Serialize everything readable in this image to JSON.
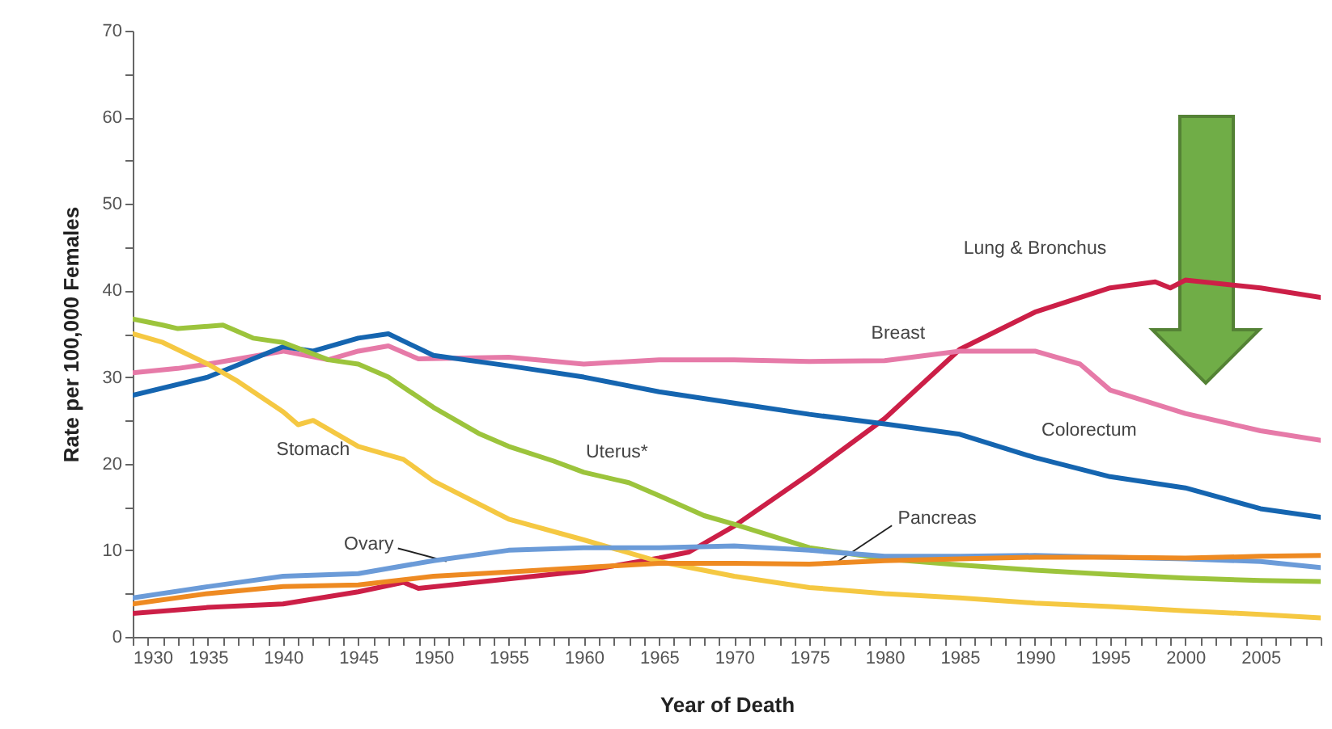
{
  "chart_data": {
    "type": "line",
    "xlabel": "Year of Death",
    "ylabel": "Rate per 100,000 Females",
    "xlim": [
      1930,
      2009
    ],
    "ylim": [
      0,
      70
    ],
    "xticks": [
      1930,
      {
        "value": 1931,
        "label": null
      },
      {
        "value": 1932,
        "label": null
      },
      {
        "value": 1933,
        "label": null
      },
      {
        "value": 1934,
        "label": null
      },
      1935,
      {
        "value": 1936,
        "label": null
      },
      {
        "value": 1937,
        "label": null
      },
      {
        "value": 1938,
        "label": null
      },
      {
        "value": 1939,
        "label": null
      },
      1940,
      {
        "value": 1941,
        "label": null
      },
      {
        "value": 1942,
        "label": null
      },
      {
        "value": 1943,
        "label": null
      },
      {
        "value": 1944,
        "label": null
      },
      1945,
      {
        "value": 1946,
        "label": null
      },
      {
        "value": 1947,
        "label": null
      },
      {
        "value": 1948,
        "label": null
      },
      {
        "value": 1949,
        "label": null
      },
      1950,
      {
        "value": 1951,
        "label": null
      },
      {
        "value": 1952,
        "label": null
      },
      {
        "value": 1953,
        "label": null
      },
      {
        "value": 1954,
        "label": null
      },
      1955,
      {
        "value": 1956,
        "label": null
      },
      {
        "value": 1957,
        "label": null
      },
      {
        "value": 1958,
        "label": null
      },
      {
        "value": 1959,
        "label": null
      },
      1960,
      {
        "value": 1961,
        "label": null
      },
      {
        "value": 1962,
        "label": null
      },
      {
        "value": 1963,
        "label": null
      },
      {
        "value": 1964,
        "label": null
      },
      1965,
      {
        "value": 1966,
        "label": null
      },
      {
        "value": 1967,
        "label": null
      },
      {
        "value": 1968,
        "label": null
      },
      {
        "value": 1969,
        "label": null
      },
      1970,
      {
        "value": 1971,
        "label": null
      },
      {
        "value": 1972,
        "label": null
      },
      {
        "value": 1973,
        "label": null
      },
      {
        "value": 1974,
        "label": null
      },
      1975,
      {
        "value": 1976,
        "label": null
      },
      {
        "value": 1977,
        "label": null
      },
      {
        "value": 1978,
        "label": null
      },
      {
        "value": 1979,
        "label": null
      },
      1980,
      {
        "value": 1981,
        "label": null
      },
      {
        "value": 1982,
        "label": null
      },
      {
        "value": 1983,
        "label": null
      },
      {
        "value": 1984,
        "label": null
      },
      1985,
      {
        "value": 1986,
        "label": null
      },
      {
        "value": 1987,
        "label": null
      },
      {
        "value": 1988,
        "label": null
      },
      {
        "value": 1989,
        "label": null
      },
      1990,
      {
        "value": 1991,
        "label": null
      },
      {
        "value": 1992,
        "label": null
      },
      {
        "value": 1993,
        "label": null
      },
      {
        "value": 1994,
        "label": null
      },
      1995,
      {
        "value": 1996,
        "label": null
      },
      {
        "value": 1997,
        "label": null
      },
      {
        "value": 1998,
        "label": null
      },
      {
        "value": 1999,
        "label": null
      },
      2000,
      {
        "value": 2001,
        "label": null
      },
      {
        "value": 2002,
        "label": null
      },
      {
        "value": 2003,
        "label": null
      },
      {
        "value": 2004,
        "label": null
      },
      2005,
      {
        "value": 2006,
        "label": null
      },
      {
        "value": 2007,
        "label": null
      },
      {
        "value": 2008,
        "label": null
      },
      {
        "value": 2009,
        "label": null
      }
    ],
    "yticks": [
      0,
      {
        "value": 5,
        "label": null
      },
      10,
      {
        "value": 15,
        "label": null
      },
      20,
      {
        "value": 25,
        "label": null
      },
      30,
      {
        "value": 35,
        "label": null
      },
      40,
      {
        "value": 45,
        "label": null
      },
      50,
      {
        "value": 55,
        "label": null
      },
      60,
      {
        "value": 65,
        "label": null
      },
      70
    ],
    "grid": false,
    "line_style": "solid",
    "series": [
      {
        "name": "Lung & Bronchus",
        "color": "#cc1f47",
        "x": [
          1930,
          1935,
          1940,
          1945,
          1948,
          1949,
          1955,
          1960,
          1965,
          1967,
          1970,
          1975,
          1980,
          1985,
          1990,
          1995,
          1998,
          1999,
          2000,
          2005,
          2009
        ],
        "values": [
          2.7,
          3.4,
          3.8,
          5.2,
          6.3,
          5.6,
          6.7,
          7.6,
          9.1,
          9.8,
          12.8,
          18.8,
          25.2,
          33.2,
          37.5,
          40.3,
          41.0,
          40.3,
          41.2,
          40.3,
          39.2
        ]
      },
      {
        "name": "Breast",
        "color": "#e67aa8",
        "x": [
          1930,
          1933,
          1935,
          1940,
          1943,
          1945,
          1947,
          1949,
          1955,
          1960,
          1965,
          1970,
          1975,
          1980,
          1985,
          1990,
          1993,
          1995,
          2000,
          2005,
          2009
        ],
        "values": [
          30.5,
          31,
          31.5,
          33,
          32,
          33,
          33.6,
          32.1,
          32.3,
          31.5,
          32,
          32,
          31.8,
          31.9,
          33,
          33,
          31.5,
          28.5,
          25.8,
          23.8,
          22.7
        ]
      },
      {
        "name": "Colorectum",
        "color": "#1565b0",
        "x": [
          1930,
          1935,
          1940,
          1942,
          1945,
          1947,
          1950,
          1955,
          1960,
          1965,
          1970,
          1975,
          1980,
          1985,
          1990,
          1995,
          2000,
          2005,
          2009
        ],
        "values": [
          27.9,
          30,
          33.5,
          33,
          34.5,
          35,
          32.5,
          31.3,
          30,
          28.3,
          27,
          25.7,
          24.6,
          23.4,
          20.7,
          18.5,
          17.2,
          14.8,
          13.8
        ]
      },
      {
        "name": "Uterus*",
        "color": "#9cc43c",
        "x": [
          1930,
          1932,
          1933,
          1936,
          1938,
          1940,
          1943,
          1945,
          1947,
          1950,
          1953,
          1955,
          1958,
          1960,
          1963,
          1965,
          1968,
          1970,
          1975,
          1980,
          1985,
          1990,
          1995,
          2000,
          2005,
          2009
        ],
        "values": [
          36.7,
          36.0,
          35.6,
          36,
          34.5,
          34,
          32,
          31.5,
          30,
          26.5,
          23.5,
          22,
          20.3,
          19,
          17.8,
          16.3,
          14,
          13,
          10.3,
          9,
          8.3,
          7.7,
          7.2,
          6.8,
          6.5,
          6.4
        ]
      },
      {
        "name": "Stomach",
        "color": "#f5c842",
        "x": [
          1930,
          1932,
          1935,
          1937,
          1940,
          1941,
          1942,
          1945,
          1948,
          1950,
          1955,
          1960,
          1965,
          1970,
          1975,
          1980,
          1985,
          1990,
          1995,
          2000,
          2005,
          2009
        ],
        "values": [
          35,
          34,
          31.5,
          29.5,
          26,
          24.5,
          25,
          22,
          20.5,
          18,
          13.6,
          11.2,
          8.7,
          7,
          5.7,
          5,
          4.5,
          3.9,
          3.5,
          3,
          2.6,
          2.2
        ]
      },
      {
        "name": "Ovary",
        "color": "#6b9bd8",
        "x": [
          1930,
          1935,
          1940,
          1945,
          1950,
          1955,
          1960,
          1965,
          1970,
          1975,
          1980,
          1985,
          1990,
          1995,
          2000,
          2005,
          2009
        ],
        "values": [
          4.5,
          5.8,
          7,
          7.3,
          8.8,
          10,
          10.3,
          10.3,
          10.5,
          10,
          9.3,
          9.3,
          9.4,
          9.2,
          9,
          8.7,
          8
        ]
      },
      {
        "name": "Pancreas",
        "color": "#ee8a22",
        "x": [
          1930,
          1935,
          1940,
          1945,
          1950,
          1955,
          1960,
          1965,
          1970,
          1975,
          1980,
          1985,
          1990,
          1995,
          2000,
          2005,
          2009
        ],
        "values": [
          3.8,
          5,
          5.8,
          6,
          7,
          7.5,
          8,
          8.5,
          8.5,
          8.4,
          8.8,
          9,
          9.2,
          9.2,
          9.1,
          9.3,
          9.4
        ]
      }
    ]
  }
}
